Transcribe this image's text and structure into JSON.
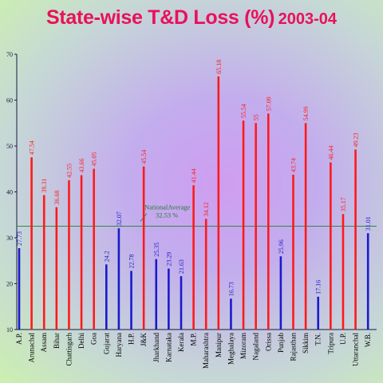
{
  "title": {
    "main": "State-wise T&D Loss (%)",
    "year": "2003-04"
  },
  "colors": {
    "above": "#ff1a1a",
    "below": "#1a1acc",
    "average": "#2e8b3e",
    "title": "#e8115a"
  },
  "chart_data": {
    "type": "bar",
    "title": "State-wise T&D Loss (%) 2003-04",
    "xlabel": "",
    "ylabel": "",
    "ylim": [
      10,
      70
    ],
    "yticks": [
      "10",
      "20",
      "30",
      "40",
      "50",
      "60",
      "70"
    ],
    "grid": false,
    "categories": [
      "A.P.",
      "Arunachal",
      "Assam",
      "Bihar",
      "Chattisgarh",
      "Delhi",
      "Goa",
      "Gujarat",
      "Haryana",
      "H.P.",
      "J&K",
      "Jharkhand",
      "Karnataka",
      "Kerala",
      "M.P.",
      "Maharashtra",
      "Manipur",
      "Meghalaya",
      "Mizoram",
      "Nagaland",
      "Orissa",
      "Punjab",
      "Rajasthan",
      "Sikkim",
      "T.N.",
      "Tripura",
      "U.P.",
      "Uttaranchal",
      "W.B."
    ],
    "values": [
      27.73,
      47.54,
      39.31,
      36.68,
      42.55,
      43.66,
      45.05,
      24.2,
      32.07,
      22.78,
      45.54,
      25.35,
      23.29,
      21.63,
      41.44,
      34.12,
      65.18,
      16.73,
      55.54,
      55,
      57.09,
      25.96,
      43.74,
      54.99,
      17.16,
      46.44,
      35.17,
      49.23,
      31.01
    ],
    "labels": [
      "27.73",
      "47.54",
      "39.31",
      "36.68",
      "42.55",
      "43.66",
      "45.05",
      "24.2",
      "32.07",
      "22.78",
      "45.54",
      "25.35",
      "23.29",
      "21.63",
      "41.44",
      "34.12",
      "65.18",
      "16.73",
      "55.54",
      "55",
      "57.09",
      "25.96",
      "43.74",
      "54.99",
      "17.16",
      "46.44",
      "35.17",
      "49.23",
      "31.01"
    ],
    "average": {
      "value": 32.53,
      "label": "NationalAverage",
      "value_label": "32.53 %"
    }
  }
}
